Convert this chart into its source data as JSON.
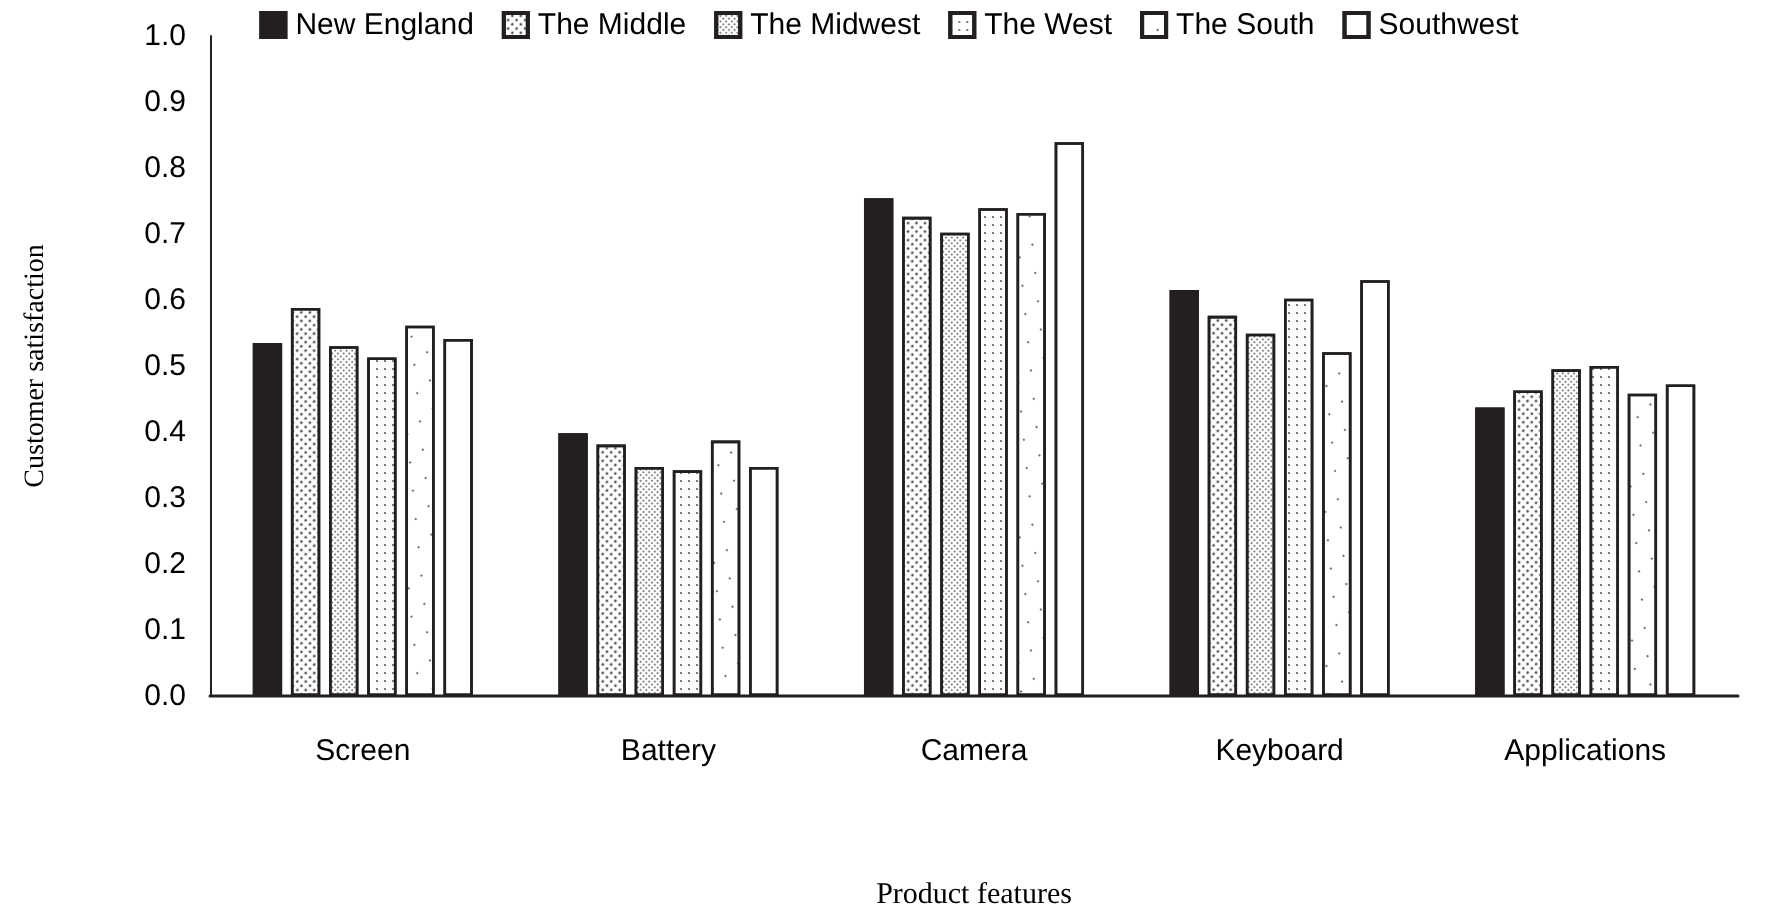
{
  "chart_data": {
    "type": "bar",
    "xlabel": "Product features",
    "ylabel": "Customer satisfaction",
    "categories": [
      "Screen",
      "Battery",
      "Camera",
      "Keyboard",
      "Applications"
    ],
    "series": [
      {
        "name": "New England",
        "color": "#231f20",
        "values": [
          0.535,
          0.398,
          0.754,
          0.615,
          0.437
        ]
      },
      {
        "name": "The Middle",
        "color": "#ffffff",
        "values": [
          0.588,
          0.381,
          0.726,
          0.576,
          0.463
        ]
      },
      {
        "name": "The Midwest",
        "color": "#ffffff",
        "values": [
          0.53,
          0.347,
          0.702,
          0.549,
          0.495
        ]
      },
      {
        "name": "The West",
        "color": "#ffffff",
        "values": [
          0.513,
          0.342,
          0.739,
          0.602,
          0.5
        ]
      },
      {
        "name": "The South",
        "color": "#ffffff",
        "values": [
          0.561,
          0.387,
          0.732,
          0.521,
          0.458
        ]
      },
      {
        "name": "Southwest",
        "color": "#ffffff",
        "values": [
          0.541,
          0.347,
          0.839,
          0.63,
          0.472
        ]
      }
    ],
    "ylim": [
      0,
      1
    ],
    "yticks": [
      {
        "value": 0,
        "label": "0.0"
      },
      {
        "value": 0.1,
        "label": "0.1"
      },
      {
        "value": 0.2,
        "label": "0.2"
      },
      {
        "value": 0.3,
        "label": "0.3"
      },
      {
        "value": 0.4,
        "label": "0.4"
      },
      {
        "value": 0.5,
        "label": "0.5"
      },
      {
        "value": 0.6,
        "label": "0.6"
      },
      {
        "value": 0.7,
        "label": "0.7"
      },
      {
        "value": 0.8,
        "label": "0.8"
      },
      {
        "value": 0.9,
        "label": "0.9"
      },
      {
        "value": 1,
        "label": "1.0"
      }
    ],
    "grid": false,
    "legend": "top"
  }
}
